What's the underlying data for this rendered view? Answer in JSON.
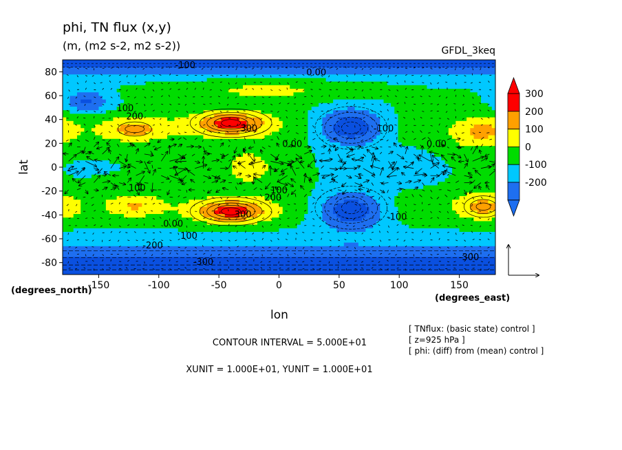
{
  "figure": {
    "title": "phi, TN flux (x,y)",
    "subtitle": "(m, (m2 s-2, m2 s-2))",
    "model_tag": "GFDL_3keq",
    "xlabel": "lon",
    "ylabel": "lat",
    "x_unit_note": "(degrees_east)",
    "y_unit_note": "(degrees_north)",
    "contour_interval": "CONTOUR INTERVAL = 5.000E+01",
    "vector_units": "XUNIT = 1.000E+01, YUNIT = 1.000E+01",
    "info_lines": [
      "[ TNflux: (basic state) control ]",
      "[ z=925 hPa ]",
      "[ phi: (diff) from (mean) control ]"
    ]
  },
  "chart_data": {
    "type": "heatmap",
    "title": "phi, TN flux (x,y)",
    "xlabel": "lon",
    "ylabel": "lat",
    "xlim": [
      -180,
      180
    ],
    "ylim": [
      -90,
      90
    ],
    "x_ticks": [
      -150,
      -100,
      -50,
      0,
      50,
      100,
      150
    ],
    "y_ticks": [
      -80,
      -60,
      -40,
      -20,
      0,
      20,
      40,
      60,
      80
    ],
    "x_tick_labels": [
      "-150",
      "-100",
      "-50",
      "0",
      "50",
      "100",
      "150"
    ],
    "y_tick_labels": [
      "-80",
      "-60",
      "-40",
      "-20",
      "0",
      "20",
      "40",
      "60",
      "80"
    ],
    "contour_interval": 50,
    "colorbar": {
      "levels": [
        -300,
        -200,
        -100,
        0,
        100,
        200,
        300
      ],
      "labels": [
        "300",
        "200",
        "100",
        "0",
        "-100",
        "-200"
      ],
      "colors": [
        "#1e6ff0",
        "#00c8ff",
        "#00dc00",
        "#ffff00",
        "#ffa000",
        "#ff0000"
      ]
    },
    "field_features": [
      {
        "name": "ridge",
        "lon": -40,
        "lat": 37,
        "value": 300
      },
      {
        "name": "ridge",
        "lon": -40,
        "lat": -37,
        "value": 300
      },
      {
        "name": "trough",
        "lon": 60,
        "lat": 33,
        "value": -200
      },
      {
        "name": "trough",
        "lon": 60,
        "lat": -33,
        "value": -200
      },
      {
        "name": "trough",
        "lon": -160,
        "lat": 55,
        "value": -150
      },
      {
        "name": "ridge",
        "lon": 170,
        "lat": 30,
        "value": 150
      },
      {
        "name": "ridge",
        "lon": 170,
        "lat": -35,
        "value": 150
      },
      {
        "name": "ridge",
        "lon": -120,
        "lat": -32,
        "value": 150
      },
      {
        "name": "ridge",
        "lon": -120,
        "lat": 32,
        "value": 200
      },
      {
        "name": "polar_south",
        "lon": 0,
        "lat": -85,
        "value": -300
      },
      {
        "name": "polar_north",
        "lon": 0,
        "lat": 88,
        "value": -100
      }
    ],
    "contour_labels": [
      {
        "lon": -78,
        "lat": 83,
        "text": "-100"
      },
      {
        "lon": 31,
        "lat": 77,
        "text": "0.00"
      },
      {
        "lon": -128,
        "lat": 47,
        "text": "100"
      },
      {
        "lon": -120,
        "lat": 40,
        "text": "200"
      },
      {
        "lon": -25,
        "lat": 30,
        "text": "300"
      },
      {
        "lon": 87,
        "lat": 30,
        "text": "-100"
      },
      {
        "lon": 11,
        "lat": 17,
        "text": "0.00"
      },
      {
        "lon": 131,
        "lat": 17,
        "text": "0.00"
      },
      {
        "lon": -118,
        "lat": -20,
        "text": "100"
      },
      {
        "lon": 0,
        "lat": -22,
        "text": "100"
      },
      {
        "lon": -5,
        "lat": -28,
        "text": "200"
      },
      {
        "lon": -30,
        "lat": -42,
        "text": "300"
      },
      {
        "lon": 98,
        "lat": -44,
        "text": "-100"
      },
      {
        "lon": -88,
        "lat": -50,
        "text": "0.00"
      },
      {
        "lon": -75,
        "lat": -60,
        "text": "100"
      },
      {
        "lon": -105,
        "lat": -68,
        "text": "-200"
      },
      {
        "lon": -63,
        "lat": -82,
        "text": "-300"
      },
      {
        "lon": 158,
        "lat": -78,
        "text": "-300"
      }
    ],
    "vector_field": "TN flux (x,y)"
  }
}
